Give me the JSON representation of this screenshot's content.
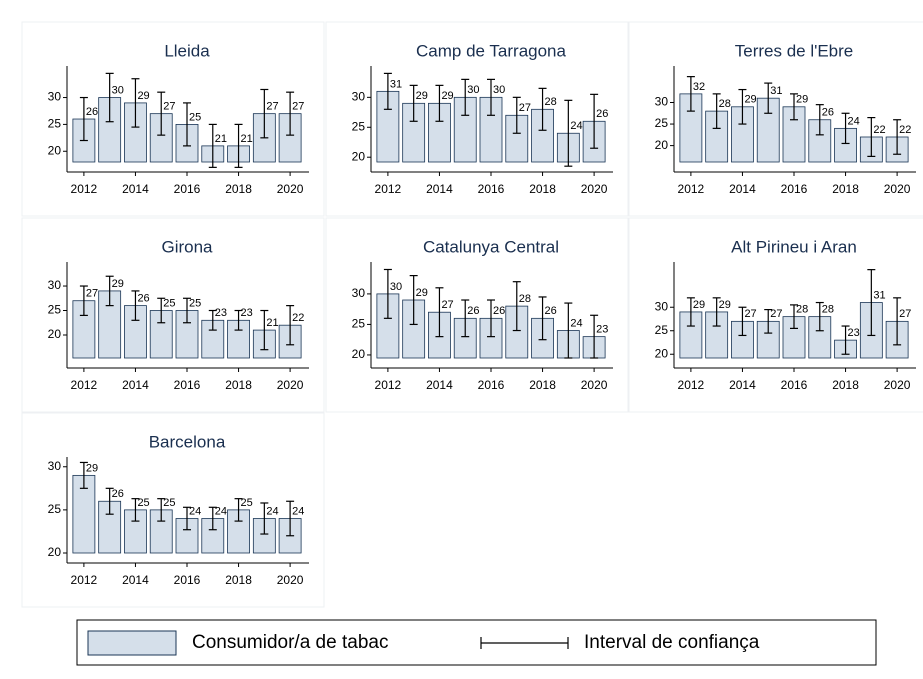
{
  "chart_data": [
    {
      "type": "bar",
      "title": "Lleida",
      "x": [
        2012,
        2013,
        2014,
        2015,
        2016,
        2017,
        2018,
        2019,
        2020
      ],
      "xlim": [
        2011.5,
        2020.5
      ],
      "xticks": [
        2012,
        2014,
        2016,
        2018,
        2020
      ],
      "ylim": [
        18,
        35.5
      ],
      "yticks": [
        20,
        25,
        30
      ],
      "series": [
        {
          "color": "#d5dfea",
          "values": [
            26,
            30,
            29,
            27,
            25,
            21,
            21,
            27,
            27
          ],
          "errors": [
            4,
            4.5,
            4.5,
            4,
            4,
            4,
            4,
            4.5,
            4
          ]
        }
      ]
    },
    {
      "type": "bar",
      "title": "Camp de Tarragona",
      "x": [
        2012,
        2013,
        2014,
        2015,
        2016,
        2017,
        2018,
        2019,
        2020
      ],
      "xlim": [
        2011.5,
        2020.5
      ],
      "xticks": [
        2012,
        2014,
        2016,
        2018,
        2020
      ],
      "ylim": [
        19.2,
        34.9
      ],
      "yticks": [
        20,
        25,
        30
      ],
      "series": [
        {
          "color": "#d5dfea",
          "values": [
            31,
            29,
            29,
            30,
            30,
            27,
            28,
            24,
            26
          ],
          "errors": [
            3,
            3,
            3,
            3,
            3,
            3,
            3.5,
            5.5,
            4.5
          ]
        }
      ]
    },
    {
      "type": "bar",
      "title": "Terres de l'Ebre",
      "x": [
        2012,
        2013,
        2014,
        2015,
        2016,
        2017,
        2018,
        2019,
        2020
      ],
      "xlim": [
        2011.5,
        2020.5
      ],
      "xticks": [
        2012,
        2014,
        2016,
        2018,
        2020
      ],
      "ylim": [
        16.2,
        38
      ],
      "yticks": [
        20,
        25,
        30
      ],
      "series": [
        {
          "color": "#d5dfea",
          "values": [
            32,
            28,
            29,
            31,
            29,
            26,
            24,
            22,
            22
          ],
          "errors": [
            4,
            4,
            4,
            3.5,
            3,
            3.5,
            3.5,
            4.5,
            4
          ]
        }
      ]
    },
    {
      "type": "bar",
      "title": "Girona",
      "x": [
        2012,
        2013,
        2014,
        2015,
        2016,
        2017,
        2018,
        2019,
        2020
      ],
      "xlim": [
        2011.5,
        2020.5
      ],
      "xticks": [
        2012,
        2014,
        2016,
        2018,
        2020
      ],
      "ylim": [
        15.3,
        34.5
      ],
      "yticks": [
        20,
        25,
        30
      ],
      "series": [
        {
          "color": "#d5dfea",
          "values": [
            27,
            29,
            26,
            25,
            25,
            23,
            23,
            21,
            22
          ],
          "errors": [
            3,
            3,
            3,
            2.5,
            2.5,
            2,
            2,
            4,
            4
          ]
        }
      ]
    },
    {
      "type": "bar",
      "title": "Catalunya Central",
      "x": [
        2012,
        2013,
        2014,
        2015,
        2016,
        2017,
        2018,
        2019,
        2020
      ],
      "xlim": [
        2011.5,
        2020.5
      ],
      "xticks": [
        2012,
        2014,
        2016,
        2018,
        2020
      ],
      "ylim": [
        19.5,
        34.9
      ],
      "yticks": [
        20,
        25,
        30
      ],
      "series": [
        {
          "color": "#d5dfea",
          "values": [
            30,
            29,
            27,
            26,
            26,
            28,
            26,
            24,
            23
          ],
          "errors": [
            4,
            4,
            4,
            3,
            3,
            4,
            3.5,
            4.5,
            3.5
          ]
        }
      ]
    },
    {
      "type": "bar",
      "title": "Alt Pirineu i Aran",
      "x": [
        2012,
        2013,
        2014,
        2015,
        2016,
        2017,
        2018,
        2019,
        2020
      ],
      "xlim": [
        2011.5,
        2020.5
      ],
      "xticks": [
        2012,
        2014,
        2016,
        2018,
        2020
      ],
      "ylim": [
        19.2,
        39.2
      ],
      "yticks": [
        20,
        25,
        30
      ],
      "series": [
        {
          "color": "#d5dfea",
          "values": [
            29,
            29,
            27,
            27,
            28,
            28,
            23,
            31,
            27
          ],
          "errors": [
            3,
            3,
            3,
            2.5,
            2.5,
            3,
            3,
            7,
            5
          ]
        }
      ]
    },
    {
      "type": "bar",
      "title": "Barcelona",
      "x": [
        2012,
        2013,
        2014,
        2015,
        2016,
        2017,
        2018,
        2019,
        2020
      ],
      "xlim": [
        2011.5,
        2020.5
      ],
      "xticks": [
        2012,
        2014,
        2016,
        2018,
        2020
      ],
      "ylim": [
        20,
        30.9
      ],
      "yticks": [
        20,
        25,
        30
      ],
      "series": [
        {
          "color": "#d5dfea",
          "values": [
            29,
            26,
            25,
            25,
            24,
            24,
            25,
            24,
            24
          ],
          "errors": [
            1.5,
            1.5,
            1.3,
            1.3,
            1.3,
            1.3,
            1.3,
            1.8,
            2
          ]
        }
      ]
    }
  ],
  "legend": [
    "Consumidor/a de tabac",
    "Interval de confiança"
  ]
}
